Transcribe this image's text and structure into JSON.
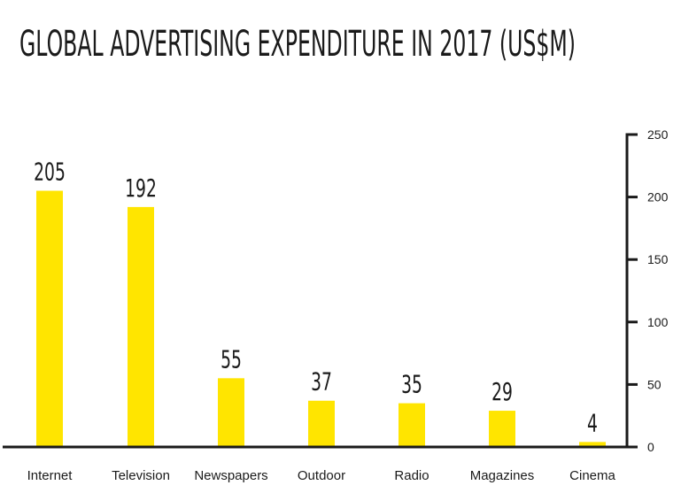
{
  "chart_data": {
    "type": "bar",
    "title": "GLOBAL ADVERTISING EXPENDITURE IN 2017 (US$M)",
    "categories": [
      "Internet",
      "Television",
      "Newspapers",
      "Outdoor",
      "Radio",
      "Magazines",
      "Cinema"
    ],
    "values": [
      205,
      192,
      55,
      37,
      35,
      29,
      4
    ],
    "data_labels": [
      "205",
      "192",
      "55",
      "37",
      "35",
      "29",
      "4"
    ],
    "ylim": [
      0,
      250
    ],
    "yticks": [
      0,
      50,
      100,
      150,
      200,
      250
    ],
    "y_axis_position": "right",
    "grid": false,
    "legend": "none",
    "bar_color": "#FFE500",
    "axis_color": "#1a1a1a",
    "text_color": "#1a1a1a"
  }
}
